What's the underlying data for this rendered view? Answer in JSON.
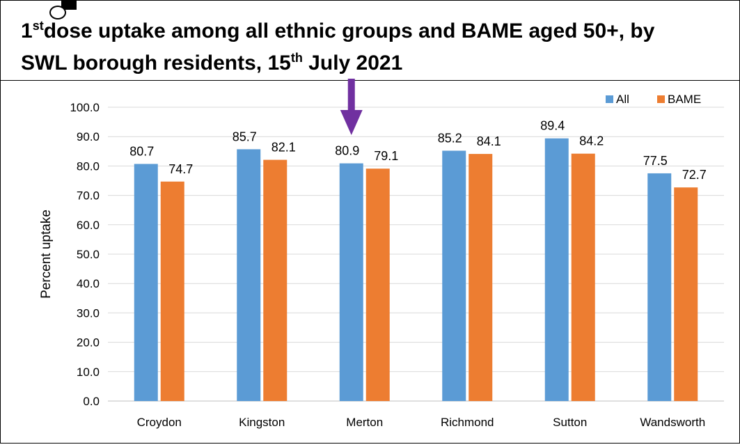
{
  "title": {
    "line1_prefix": "1",
    "line1_sup": "st",
    "line1_rest": "dose uptake among all ethnic groups and BAME aged 50+, by",
    "line2_prefix": "SWL borough residents, 15",
    "line2_sup": "th",
    "line2_rest": " July 2021"
  },
  "colors": {
    "all": "#5b9bd5",
    "bame": "#ed7d31",
    "arrow": "#7030a0",
    "grid": "#d9d9d9"
  },
  "chart_data": {
    "type": "bar",
    "categories": [
      "Croydon",
      "Kingston",
      "Merton",
      "Richmond",
      "Sutton",
      "Wandsworth"
    ],
    "series": [
      {
        "name": "All",
        "values": [
          80.7,
          85.7,
          80.9,
          85.2,
          89.4,
          77.5
        ]
      },
      {
        "name": "BAME",
        "values": [
          74.7,
          82.1,
          79.1,
          84.1,
          84.2,
          72.7
        ]
      }
    ],
    "ylabel": "Percent uptake",
    "xlabel": "",
    "ylim": [
      0,
      100
    ],
    "yticks": [
      "0.0",
      "10.0",
      "20.0",
      "30.0",
      "40.0",
      "50.0",
      "60.0",
      "70.0",
      "80.0",
      "90.0",
      "100.0"
    ],
    "grid": true,
    "legend": "top-right",
    "annotation": {
      "type": "arrow",
      "category": "Merton",
      "color": "#7030a0"
    }
  }
}
